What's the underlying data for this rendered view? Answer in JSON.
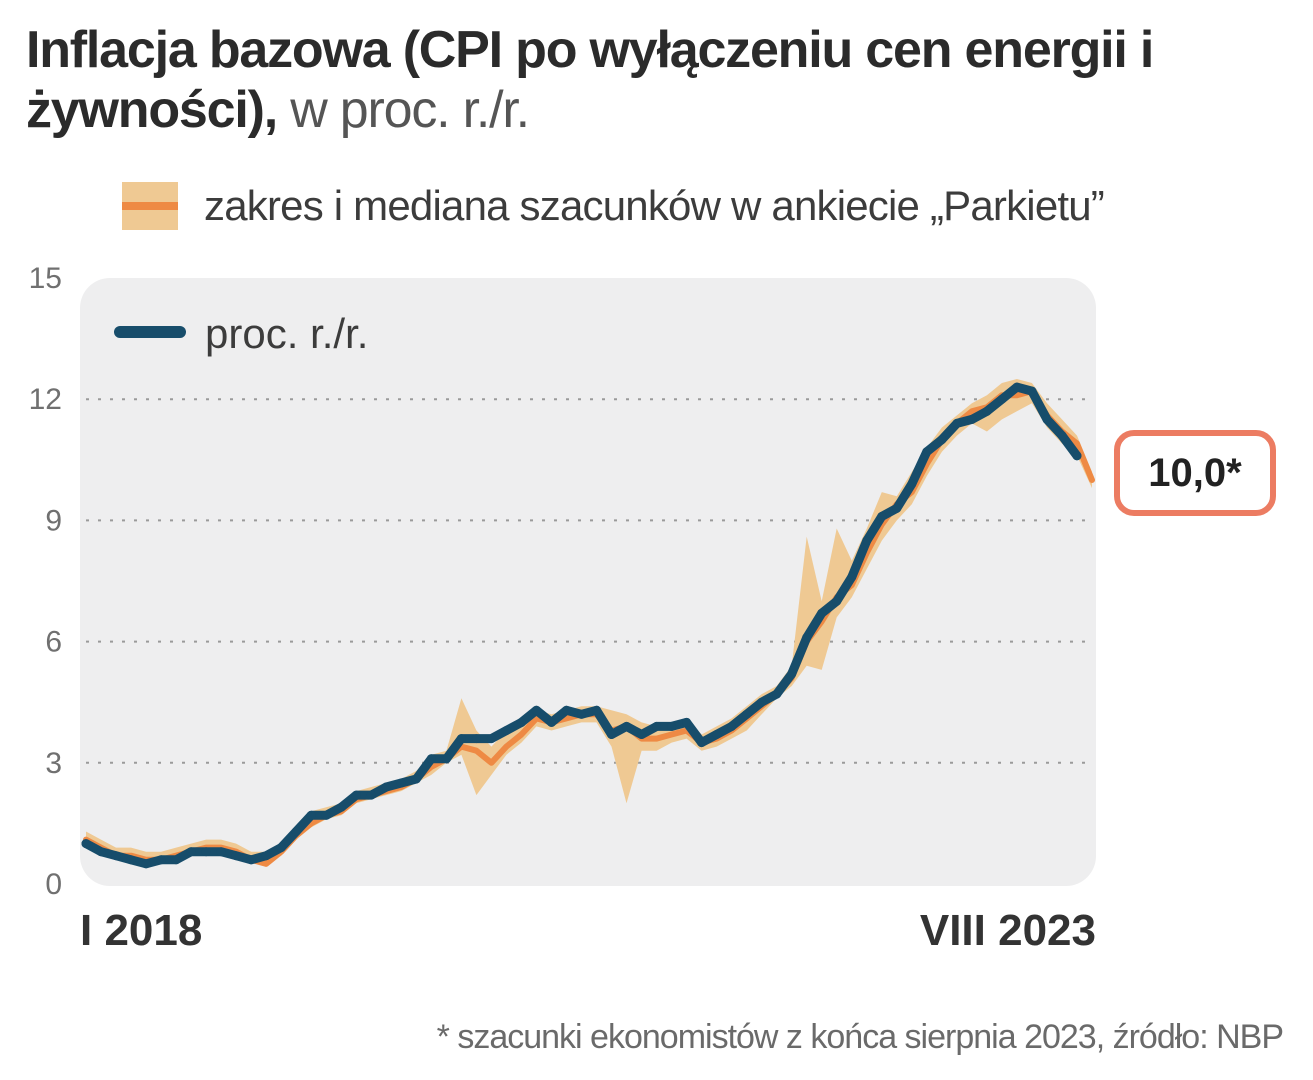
{
  "title": {
    "bold": "Inflacja bazowa (CPI po wyłączeniu cen energii i żywności),",
    "light": " w proc. r./r."
  },
  "legend": {
    "band_label": "zakres i mediana szacunków w ankiecie „Parkietu”",
    "line_label": "proc. r./r."
  },
  "callout": {
    "value": "10,0*"
  },
  "footnote": "* szacunki ekonomistów z końca sierpnia 2023, źródło: NBP",
  "colors": {
    "line": "#174d6b",
    "median": "#ee8a44",
    "band": "#efc993",
    "plot_bg": "#eeeeef",
    "callout_border": "#ec7c62"
  },
  "chart_data": {
    "type": "line",
    "title": "Inflacja bazowa (CPI po wyłączeniu cen energii i żywności), w proc. r./r.",
    "x_start": "I 2018",
    "x_end": "VIII 2023",
    "x_labels": [
      "I 2018",
      "VIII 2023"
    ],
    "yticks": [
      0,
      3,
      6,
      9,
      12,
      15
    ],
    "ylim": [
      0,
      15
    ],
    "grid": true,
    "legend_position": "top-left",
    "series": [
      {
        "name": "proc. r./r.",
        "values": [
          1.0,
          0.8,
          0.7,
          0.6,
          0.5,
          0.6,
          0.6,
          0.8,
          0.8,
          0.8,
          0.7,
          0.6,
          0.7,
          0.9,
          1.3,
          1.7,
          1.7,
          1.9,
          2.2,
          2.2,
          2.4,
          2.5,
          2.6,
          3.1,
          3.1,
          3.6,
          3.6,
          3.6,
          3.8,
          4.0,
          4.3,
          4.0,
          4.3,
          4.2,
          4.3,
          3.7,
          3.9,
          3.7,
          3.9,
          3.9,
          4.0,
          3.5,
          3.7,
          3.9,
          4.2,
          4.5,
          4.7,
          5.2,
          6.1,
          6.7,
          7.0,
          7.6,
          8.5,
          9.1,
          9.3,
          9.9,
          10.7,
          11.0,
          11.4,
          11.5,
          11.7,
          12.0,
          12.3,
          12.2,
          11.5,
          11.1,
          10.6
        ]
      },
      {
        "name": "mediana szacunków",
        "values": [
          1.1,
          0.9,
          0.7,
          0.7,
          0.6,
          0.6,
          0.7,
          0.8,
          0.9,
          0.9,
          0.8,
          0.6,
          0.5,
          0.8,
          1.2,
          1.5,
          1.7,
          1.8,
          2.1,
          2.2,
          2.3,
          2.4,
          2.6,
          2.9,
          3.1,
          3.4,
          3.3,
          3.0,
          3.4,
          3.7,
          4.1,
          4.0,
          4.1,
          4.2,
          4.2,
          3.8,
          3.9,
          3.6,
          3.6,
          3.7,
          3.8,
          3.5,
          3.6,
          3.8,
          4.1,
          4.4,
          4.7,
          5.1,
          6.0,
          6.5,
          7.1,
          7.4,
          8.2,
          8.9,
          9.4,
          9.7,
          10.4,
          11.0,
          11.4,
          11.7,
          11.8,
          12.1,
          12.1,
          12.2,
          11.6,
          11.2,
          10.9,
          10.0
        ]
      }
    ],
    "band": {
      "name": "zakres szacunków",
      "low": [
        1.0,
        0.8,
        0.6,
        0.6,
        0.5,
        0.5,
        0.6,
        0.7,
        0.8,
        0.8,
        0.7,
        0.5,
        0.5,
        0.7,
        1.1,
        1.4,
        1.6,
        1.7,
        2.0,
        2.1,
        2.2,
        2.3,
        2.5,
        2.7,
        3.0,
        3.2,
        2.2,
        2.7,
        3.2,
        3.5,
        3.9,
        3.8,
        3.9,
        4.0,
        4.0,
        3.4,
        2.0,
        3.3,
        3.3,
        3.5,
        3.6,
        3.3,
        3.4,
        3.6,
        3.8,
        4.2,
        4.6,
        4.9,
        5.4,
        5.3,
        6.6,
        7.1,
        7.8,
        8.5,
        9.0,
        9.4,
        10.1,
        10.7,
        11.1,
        11.4,
        11.2,
        11.5,
        11.7,
        11.9,
        11.3,
        10.9,
        10.6,
        9.8
      ],
      "high": [
        1.3,
        1.1,
        0.9,
        0.9,
        0.8,
        0.8,
        0.9,
        1.0,
        1.1,
        1.1,
        1.0,
        0.8,
        0.8,
        1.0,
        1.4,
        1.8,
        1.9,
        2.0,
        2.3,
        2.4,
        2.5,
        2.6,
        2.8,
        3.2,
        3.3,
        4.6,
        3.8,
        3.4,
        3.8,
        4.0,
        4.3,
        4.2,
        4.3,
        4.4,
        4.4,
        4.3,
        4.2,
        4.0,
        3.9,
        4.0,
        4.1,
        3.7,
        3.9,
        4.1,
        4.4,
        4.7,
        4.9,
        5.4,
        8.6,
        7.0,
        8.8,
        8.0,
        8.8,
        9.7,
        9.6,
        10.2,
        10.8,
        11.3,
        11.6,
        11.9,
        12.1,
        12.4,
        12.5,
        12.4,
        11.9,
        11.5,
        11.1,
        10.2
      ]
    },
    "annotation": "10,0*"
  }
}
